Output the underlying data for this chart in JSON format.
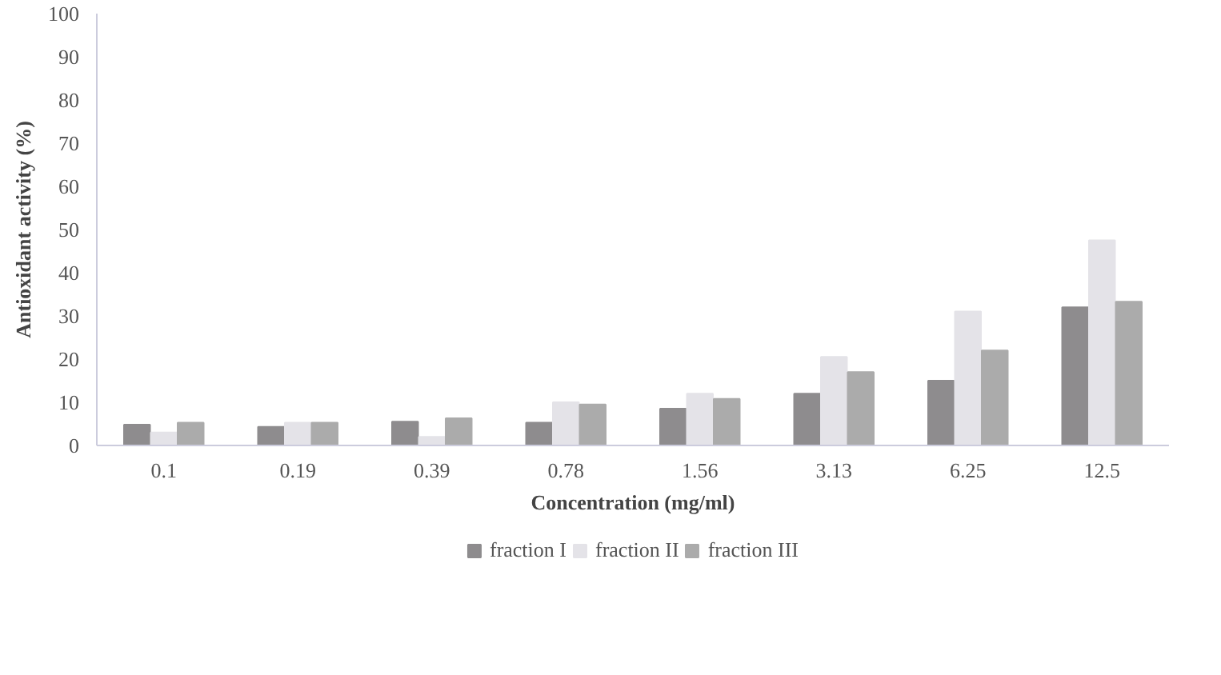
{
  "chart_data": {
    "type": "bar",
    "xlabel": "Concentration (mg/ml)",
    "ylabel": "Antioxidant activity (%)",
    "categories": [
      "0.1",
      "0.19",
      "0.39",
      "0.78",
      "1.56",
      "3.13",
      "6.25",
      "12.5"
    ],
    "series": [
      {
        "name": "fraction I",
        "color": "#8e8c8e",
        "values": [
          4.8,
          4.3,
          5.5,
          5.3,
          8.5,
          12,
          15,
          32
        ]
      },
      {
        "name": "fraction II",
        "color": "#e4e3e8",
        "values": [
          3,
          5.3,
          2,
          10,
          12,
          20.5,
          31,
          47.5
        ]
      },
      {
        "name": "fraction III",
        "color": "#ababab",
        "values": [
          5.3,
          5.3,
          6.3,
          9.5,
          10.8,
          17,
          22,
          33.3
        ]
      }
    ],
    "ylim": [
      0,
      100
    ],
    "yticks": [
      0,
      10,
      20,
      30,
      40,
      50,
      60,
      70,
      80,
      90,
      100
    ],
    "grid": false,
    "legend": "bottom"
  }
}
